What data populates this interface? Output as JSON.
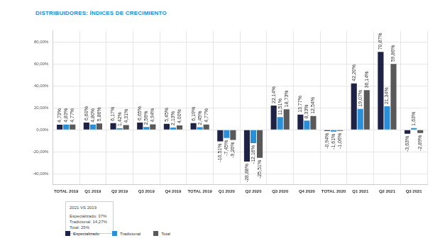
{
  "chart_data": {
    "type": "bar",
    "title": "DISTRIBUIDORES: ÍNDICES DE CRECIMIENTO",
    "categories": [
      "TOTAL 2019",
      "Q1 2019",
      "Q2 2019",
      "Q3 2019",
      "Q4 2019",
      "TOTAL 2019",
      "Q1 2020",
      "Q2 2020",
      "Q3 2020",
      "Q4 2020",
      "TOTAL 2020",
      "Q1 2021",
      "Q2 2021",
      "Q3 2021"
    ],
    "series": [
      {
        "name": "Especializado",
        "color": "#1e2245",
        "values": [
          4.73,
          6.6,
          6.17,
          6.65,
          5.45,
          6.19,
          -10.51,
          -28.88,
          22.14,
          13.77,
          -0.94,
          42.2,
          70.87,
          -3.63
        ],
        "value_labels": [
          "4,73%",
          "6,60%",
          "6,17%",
          "6,65%",
          "5,45%",
          "6,19%",
          "-10,51%",
          "-28,88%",
          "22,14%",
          "13,77%",
          "-0,94%",
          "42,20%",
          "70,87%",
          "-3,63%"
        ]
      },
      {
        "name": "Tradicional",
        "color": "#2b8fd8",
        "values": [
          4.83,
          4.8,
          1.42,
          2.56,
          2.13,
          2.45,
          -7.45,
          -12.16,
          11.51,
          8.33,
          -1.61,
          19.07,
          21.34,
          1.63
        ],
        "value_labels": [
          "4,83%",
          "4,80%",
          "1,42%",
          "2,56%",
          "2,13%",
          "2,45%",
          "-7,45%",
          "-12,16%",
          "11,51%",
          "8,33%",
          "-1,61%",
          "19,07%",
          "21,34%",
          "1,63%"
        ]
      },
      {
        "name": "Total",
        "color": "#595959",
        "values": [
          4.77,
          5.86,
          4.31,
          4.94,
          4.0,
          4.77,
          -9.26,
          -25.51,
          18.73,
          12.54,
          -1.06,
          36.14,
          59.86,
          -2.89
        ],
        "value_labels": [
          "4,77%",
          "5,86%",
          "4,31%",
          "4,94%",
          "4,00%",
          "4,77%",
          "-9,26%",
          "-25,51%",
          "18,73%",
          "12,54%",
          "-1,06%",
          "36,14%",
          "59,86%",
          "-2,89%"
        ]
      }
    ],
    "ylim": [
      -50,
      90
    ],
    "yticks": [
      {
        "value": -40,
        "label": "-40,00%"
      },
      {
        "value": -20,
        "label": "-20,00%"
      },
      {
        "value": 0,
        "label": "0,00%"
      },
      {
        "value": 20,
        "label": "20,00%"
      },
      {
        "value": 40,
        "label": "40,00%"
      },
      {
        "value": 60,
        "label": "60,00%"
      },
      {
        "value": 80,
        "label": "80,00%"
      }
    ],
    "grid": true,
    "data_labels": true,
    "legend": "lower left",
    "annotations": [
      "2021 VS 2019",
      "Especializado: 37%",
      "Tradicional: 14,27%",
      "Total: 25%"
    ]
  }
}
